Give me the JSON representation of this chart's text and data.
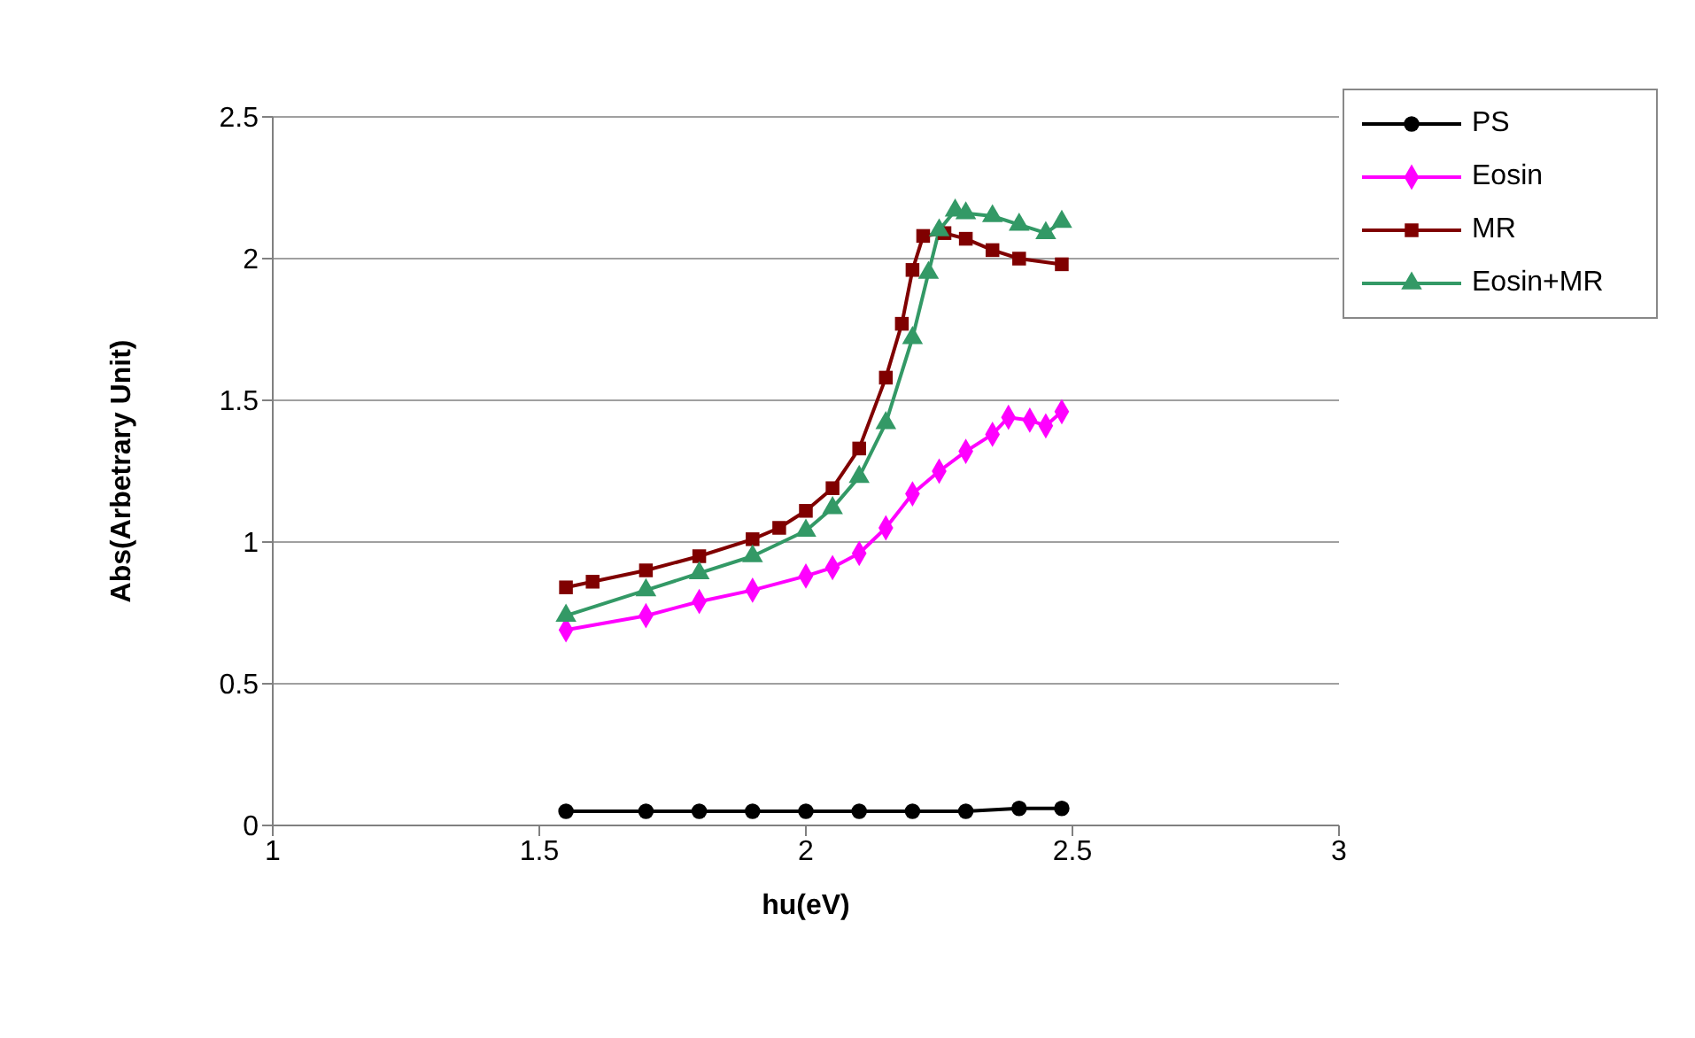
{
  "chart_data": {
    "type": "line",
    "xlabel": "hu(eV)",
    "ylabel": "Abs(Arbetrary  Unit)",
    "xlim": [
      1,
      3
    ],
    "xticks": [
      1,
      1.5,
      2,
      2.5,
      3
    ],
    "ylim": [
      0,
      2.5
    ],
    "yticks": [
      0,
      0.5,
      1,
      1.5,
      2,
      2.5
    ],
    "grid": "y",
    "legend": "top right",
    "series": [
      {
        "name": "PS",
        "color": "#000000",
        "marker": "circle",
        "x": [
          1.55,
          1.7,
          1.8,
          1.9,
          2.0,
          2.1,
          2.2,
          2.3,
          2.4,
          2.48
        ],
        "values": [
          0.05,
          0.05,
          0.05,
          0.05,
          0.05,
          0.05,
          0.05,
          0.05,
          0.06,
          0.06
        ]
      },
      {
        "name": "Eosin",
        "color": "#ff00ff",
        "marker": "diamond",
        "x": [
          1.55,
          1.7,
          1.8,
          1.9,
          2.0,
          2.05,
          2.1,
          2.15,
          2.2,
          2.25,
          2.3,
          2.35,
          2.38,
          2.42,
          2.45,
          2.48
        ],
        "values": [
          0.69,
          0.74,
          0.79,
          0.83,
          0.88,
          0.91,
          0.96,
          1.05,
          1.17,
          1.25,
          1.32,
          1.38,
          1.44,
          1.43,
          1.41,
          1.46
        ]
      },
      {
        "name": "MR",
        "color": "#800000",
        "marker": "square",
        "x": [
          1.55,
          1.6,
          1.7,
          1.8,
          1.9,
          1.95,
          2.0,
          2.05,
          2.1,
          2.15,
          2.18,
          2.2,
          2.22,
          2.26,
          2.3,
          2.35,
          2.4,
          2.48
        ],
        "values": [
          0.84,
          0.86,
          0.9,
          0.95,
          1.01,
          1.05,
          1.11,
          1.19,
          1.33,
          1.58,
          1.77,
          1.96,
          2.08,
          2.09,
          2.07,
          2.03,
          2.0,
          1.98
        ]
      },
      {
        "name": "Eosin+MR",
        "color": "#339966",
        "marker": "triangle",
        "x": [
          1.55,
          1.7,
          1.8,
          1.9,
          2.0,
          2.05,
          2.1,
          2.15,
          2.2,
          2.23,
          2.25,
          2.28,
          2.3,
          2.35,
          2.4,
          2.45,
          2.48
        ],
        "values": [
          0.74,
          0.83,
          0.89,
          0.95,
          1.04,
          1.12,
          1.23,
          1.42,
          1.72,
          1.95,
          2.1,
          2.17,
          2.16,
          2.15,
          2.12,
          2.09,
          2.13
        ]
      }
    ]
  }
}
